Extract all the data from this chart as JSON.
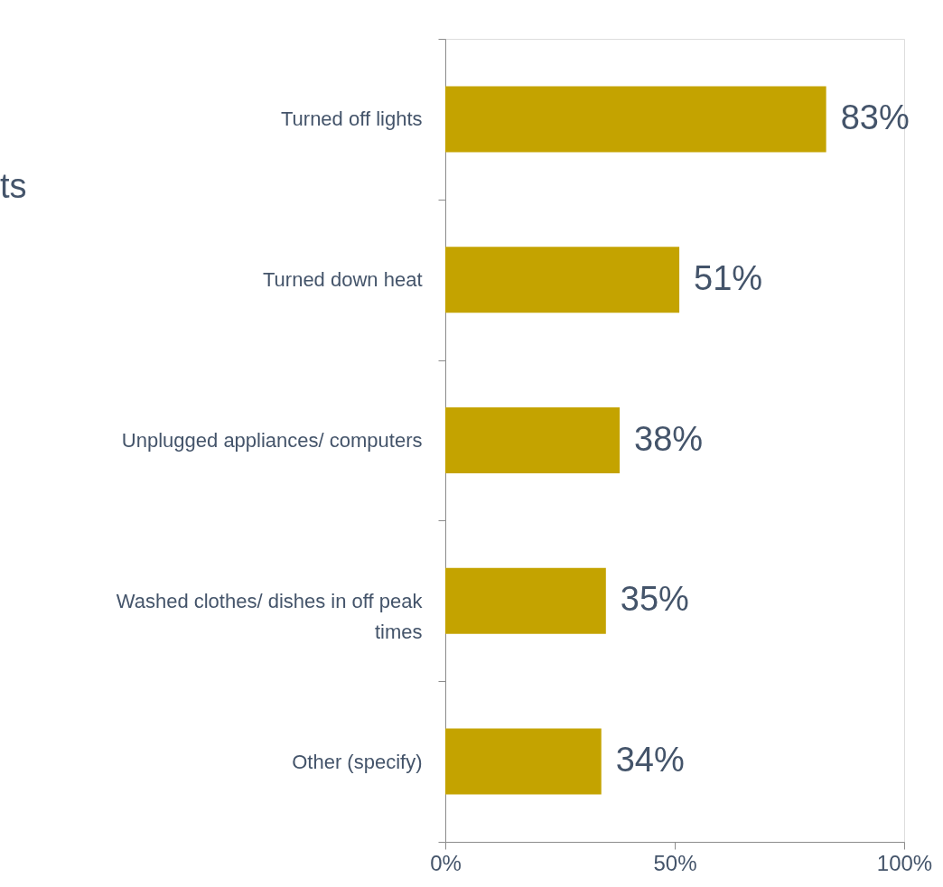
{
  "chart_data": {
    "type": "bar",
    "orientation": "horizontal",
    "categories": [
      "Turned off lights",
      "Turned down heat",
      "Unplugged appliances/ computers",
      "Washed clothes/ dishes in off peak times",
      "Other (specify)"
    ],
    "values": [
      83,
      51,
      38,
      35,
      34
    ],
    "value_labels": [
      "83%",
      "51%",
      "38%",
      "35%",
      "34%"
    ],
    "color": "#c4a300",
    "xlim": [
      0,
      100
    ],
    "xticks": [
      {
        "value": 0,
        "label": "0%"
      },
      {
        "value": 50,
        "label": "50%"
      },
      {
        "value": 100,
        "label": "100%"
      }
    ],
    "grid": false,
    "annotations": [
      "ts"
    ]
  }
}
